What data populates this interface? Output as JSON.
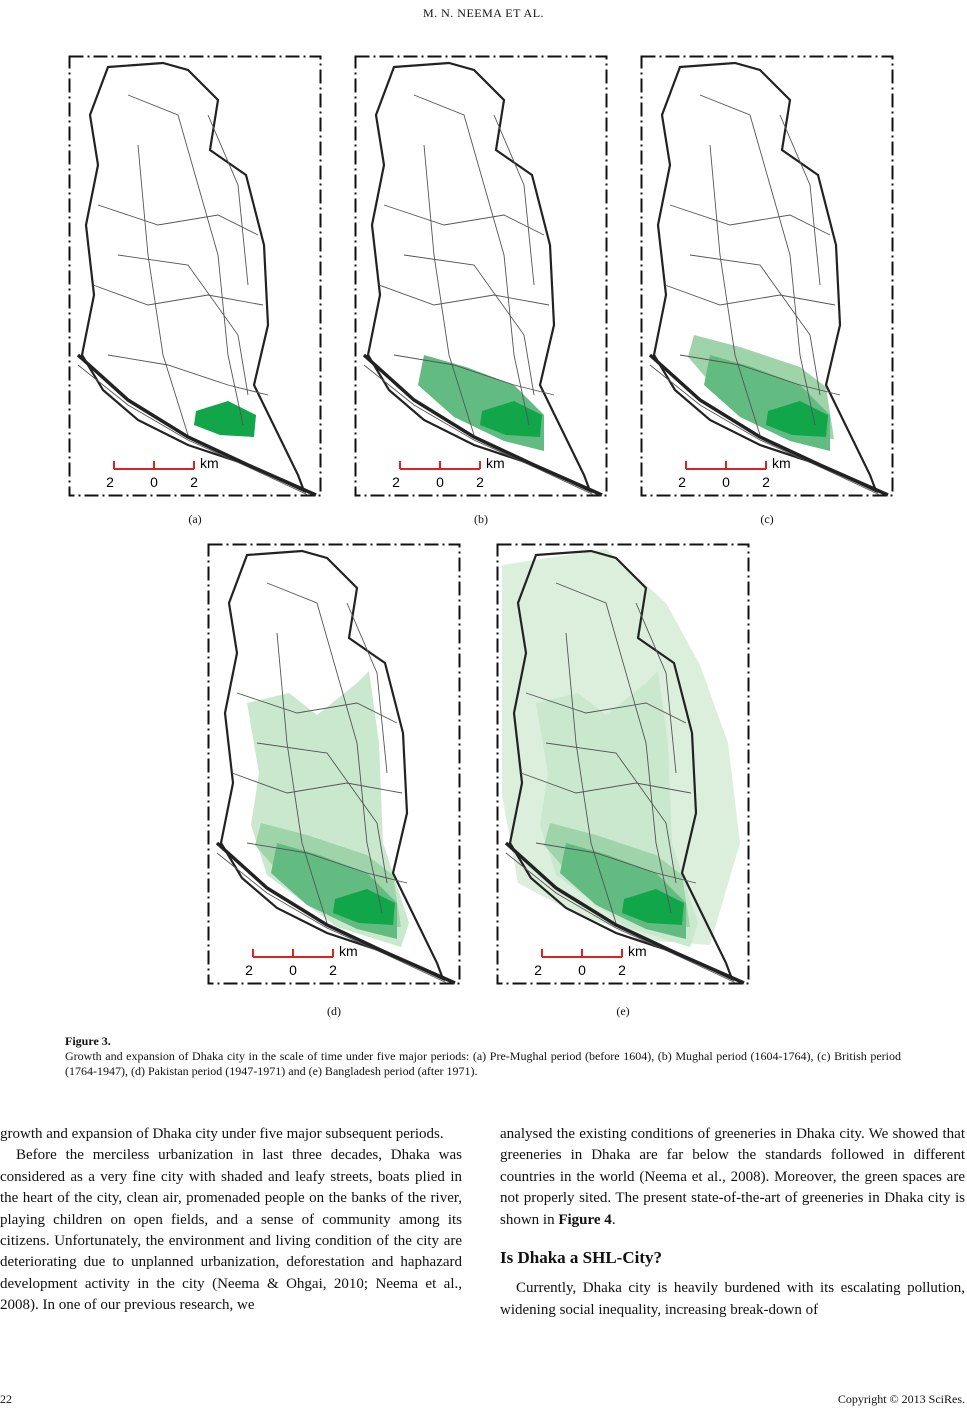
{
  "header": {
    "authors": "M. N. NEEMA    ET    AL."
  },
  "figure": {
    "panels": [
      {
        "label": "(a)",
        "scale": {
          "unit": "km",
          "ticks": [
            "2",
            "0",
            "2"
          ]
        }
      },
      {
        "label": "(b)",
        "scale": {
          "unit": "km",
          "ticks": [
            "2",
            "0",
            "2"
          ]
        }
      },
      {
        "label": "(c)",
        "scale": {
          "unit": "km",
          "ticks": [
            "2",
            "0",
            "2"
          ]
        }
      },
      {
        "label": "(d)",
        "scale": {
          "unit": "km",
          "ticks": [
            "2",
            "0",
            "2"
          ]
        }
      },
      {
        "label": "(e)",
        "scale": {
          "unit": "km",
          "ticks": [
            "2",
            "0",
            "2"
          ]
        }
      }
    ],
    "caption_title": "Figure 3.",
    "caption_text": "Growth and expansion of Dhaka city in the scale of time under five major periods: (a) Pre-Mughal period (before 1604), (b) Mughal period (1604-1764), (c) British period (1764-1947), (d) Pakistan period (1947-1971) and (e) Bangladesh period (after 1971)."
  },
  "body": {
    "left": [
      "growth and expansion of Dhaka city under five major subsequent periods.",
      "Before the merciless urbanization in last three decades, Dhaka was considered as a very fine city with shaded and leafy streets, boats plied in the heart of the city, clean air, promenaded people on the banks of the river, playing children on open fields, and a sense of community among its citizens. Unfortunately, the environment and living condition of the city are deteriorating due to unplanned urbanization, deforestation and haphazard development activity in the city (Neema & Ohgai, 2010; Neema et al., 2008). In one of our previous research, we"
    ],
    "right_para1": "analysed the existing conditions of greeneries in Dhaka city. We showed that greeneries in Dhaka are far below the standards followed in different countries in the world (Neema et al., 2008). Moreover, the green spaces are not properly sited. The present state-of-the-art of greeneries in Dhaka city is shown in",
    "right_para1_ref": "Figure 4",
    "right_para1_end": ".",
    "heading": "Is Dhaka a SHL-City?",
    "right_para2": "Currently, Dhaka city is heavily burdened with its escalating pollution, widening social inequality, increasing break-down of"
  },
  "footer": {
    "page": "22",
    "copyright": "Copyright © 2013 SciRes."
  }
}
